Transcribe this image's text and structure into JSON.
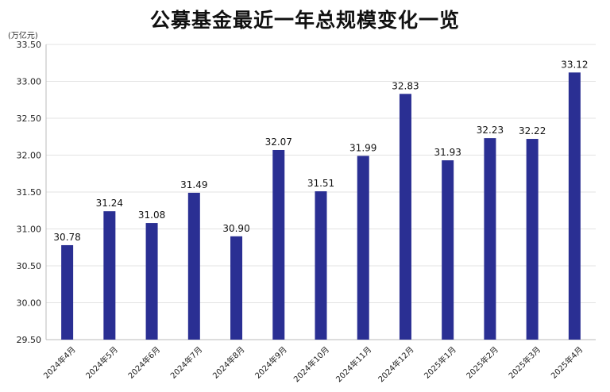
{
  "chart_data": {
    "type": "bar",
    "title": "公募基金最近一年总规模变化一览",
    "unit": "(万亿元)",
    "categories": [
      "2024年4月",
      "2024年5月",
      "2024年6月",
      "2024年7月",
      "2024年8月",
      "2024年9月",
      "2024年10月",
      "2024年11月",
      "2024年12月",
      "2025年1月",
      "2025年2月",
      "2025年3月",
      "2025年4月"
    ],
    "values": [
      30.78,
      31.24,
      31.08,
      31.49,
      30.9,
      32.07,
      31.51,
      31.99,
      32.83,
      31.93,
      32.23,
      32.22,
      33.12
    ],
    "value_labels": [
      "30.78",
      "31.24",
      "31.08",
      "31.49",
      "30.90",
      "32.07",
      "31.51",
      "31.99",
      "32.83",
      "31.93",
      "32.23",
      "32.22",
      "33.12"
    ],
    "ylim": [
      29.5,
      33.5
    ],
    "yticks": [
      "29.50",
      "30.00",
      "30.50",
      "31.00",
      "31.50",
      "32.00",
      "32.50",
      "33.00",
      "33.50"
    ],
    "grid": true,
    "bar_color": "#2a2f93",
    "grid_color": "#e3e3e3"
  }
}
